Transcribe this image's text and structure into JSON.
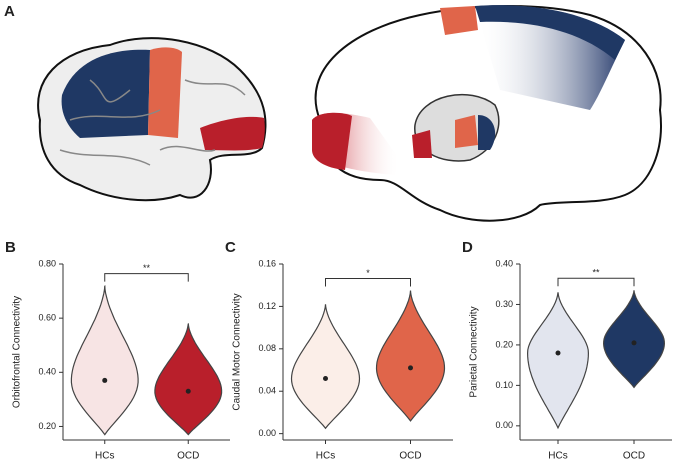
{
  "figure": {
    "label": "A"
  },
  "chart_data": [
    {
      "type": "violin",
      "panel": "B",
      "y_label": "Orbitofrontal Connectivity",
      "categories": [
        "HCs",
        "OCD"
      ],
      "ylim": [
        0.15,
        0.8
      ],
      "yticks": [
        {
          "value": 0.2,
          "label": "0.20"
        },
        {
          "value": 0.4,
          "label": "0.40"
        },
        {
          "value": 0.6,
          "label": "0.60"
        },
        {
          "value": 0.8,
          "label": "0.80"
        }
      ],
      "significance": "**",
      "series": [
        {
          "name": "HCs",
          "color": "#f7e4e4",
          "min": 0.17,
          "median": 0.37,
          "max": 0.72
        },
        {
          "name": "OCD",
          "color": "#b91f2b",
          "min": 0.17,
          "median": 0.33,
          "max": 0.58
        }
      ]
    },
    {
      "type": "violin",
      "panel": "C",
      "y_label": "Caudal Motor Connectivity",
      "categories": [
        "HCs",
        "OCD"
      ],
      "ylim": [
        -0.006,
        0.16
      ],
      "yticks": [
        {
          "value": 0,
          "label": "0.00"
        },
        {
          "value": 0.04,
          "label": "0.04"
        },
        {
          "value": 0.08,
          "label": "0.08"
        },
        {
          "value": 0.12,
          "label": "0.12"
        },
        {
          "value": 0.16,
          "label": "0.16"
        }
      ],
      "significance": "*",
      "series": [
        {
          "name": "HCs",
          "color": "#fbeee8",
          "min": 0.005,
          "median": 0.052,
          "max": 0.122
        },
        {
          "name": "OCD",
          "color": "#e0654a",
          "min": 0.012,
          "median": 0.062,
          "max": 0.135
        }
      ]
    },
    {
      "type": "violin",
      "panel": "D",
      "y_label": "Parietal Connectivity",
      "categories": [
        "HCs",
        "OCD"
      ],
      "ylim": [
        -0.035,
        0.4
      ],
      "yticks": [
        {
          "value": 0,
          "label": "0.00"
        },
        {
          "value": 0.1,
          "label": "0.10"
        },
        {
          "value": 0.2,
          "label": "0.20"
        },
        {
          "value": 0.3,
          "label": "0.30"
        },
        {
          "value": 0.4,
          "label": "0.40"
        }
      ],
      "significance": "**",
      "series": [
        {
          "name": "HCs",
          "color": "#e2e5ee",
          "min": -0.005,
          "median": 0.18,
          "max": 0.33
        },
        {
          "name": "OCD",
          "color": "#1f3864",
          "min": 0.095,
          "median": 0.205,
          "max": 0.335
        }
      ]
    }
  ]
}
